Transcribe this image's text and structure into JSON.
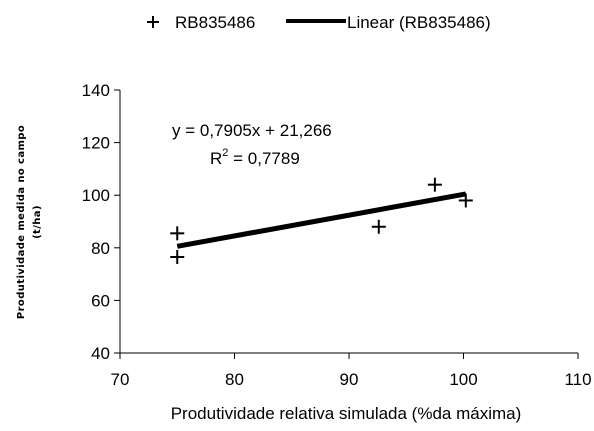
{
  "chart_data": {
    "type": "scatter",
    "xlabel": "Produtividade relativa simulada (%da máxima)",
    "ylabel_line1": "Produtividade medida no campo",
    "ylabel_line2": "(t/ha)",
    "xlim": [
      70,
      110
    ],
    "ylim": [
      40,
      140
    ],
    "xticks": [
      70,
      80,
      90,
      100,
      110
    ],
    "yticks": [
      40,
      60,
      80,
      100,
      120,
      140
    ],
    "grid": false,
    "legend_position": "top",
    "series": [
      {
        "name": "RB835486",
        "marker": "plus",
        "x": [
          75,
          75,
          92.6,
          97.5,
          100.2
        ],
        "y": [
          85.5,
          76.5,
          88,
          104,
          98
        ]
      }
    ],
    "trendline": {
      "name": "Linear (RB835486)",
      "slope": 0.7905,
      "intercept": 21.266,
      "x_range": [
        75,
        100.2
      ]
    },
    "annotations": {
      "equation": "y = 0,7905x + 21,266",
      "r2_prefix": "R",
      "r2_sup": "2",
      "r2_value": " = 0,7789"
    }
  }
}
